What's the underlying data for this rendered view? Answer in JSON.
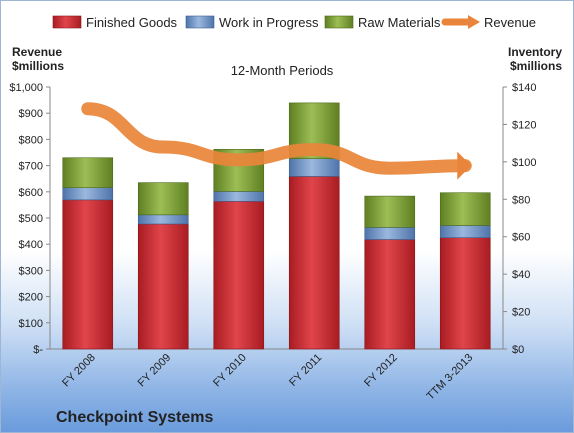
{
  "chart_data": {
    "type": "bar",
    "stacked": true,
    "title": "12-Month Periods",
    "company": "Checkpoint Systems",
    "categories": [
      "FY 2008",
      "FY 2009",
      "FY 2010",
      "FY 2011",
      "FY 2012",
      "TTM 3-2013"
    ],
    "left_axis": {
      "title_line1": "Revenue",
      "title_line2": "$millions",
      "range": [
        0,
        1000
      ],
      "ticks": [
        "$-",
        "$100",
        "$200",
        "$300",
        "$400",
        "$500",
        "$600",
        "$700",
        "$800",
        "$900",
        "$1,000"
      ]
    },
    "right_axis": {
      "title_line1": "Inventory",
      "title_line2": "$millions",
      "range": [
        0,
        140
      ],
      "ticks": [
        "$0",
        "$20",
        "$40",
        "$60",
        "$80",
        "$100",
        "$120",
        "$140"
      ]
    },
    "series": [
      {
        "name": "Finished Goods",
        "axis": "right",
        "color": "#c8242b",
        "values": [
          79.7,
          66.8,
          78.9,
          92.2,
          58.5,
          59.5
        ]
      },
      {
        "name": "Work in Progress",
        "axis": "right",
        "color": "#5f86be",
        "values": [
          6.5,
          4.9,
          5.3,
          9.5,
          6.5,
          6.5
        ]
      },
      {
        "name": "Raw Materials",
        "axis": "right",
        "color": "#74972b",
        "values": [
          16.0,
          17.2,
          22.5,
          29.8,
          16.7,
          17.5
        ]
      },
      {
        "name": "Revenue",
        "axis": "left",
        "color": "#e8853a",
        "type": "line",
        "values": [
          917,
          771,
          722,
          761,
          690,
          700
        ]
      }
    ],
    "legend_position": "top",
    "grid": false
  }
}
